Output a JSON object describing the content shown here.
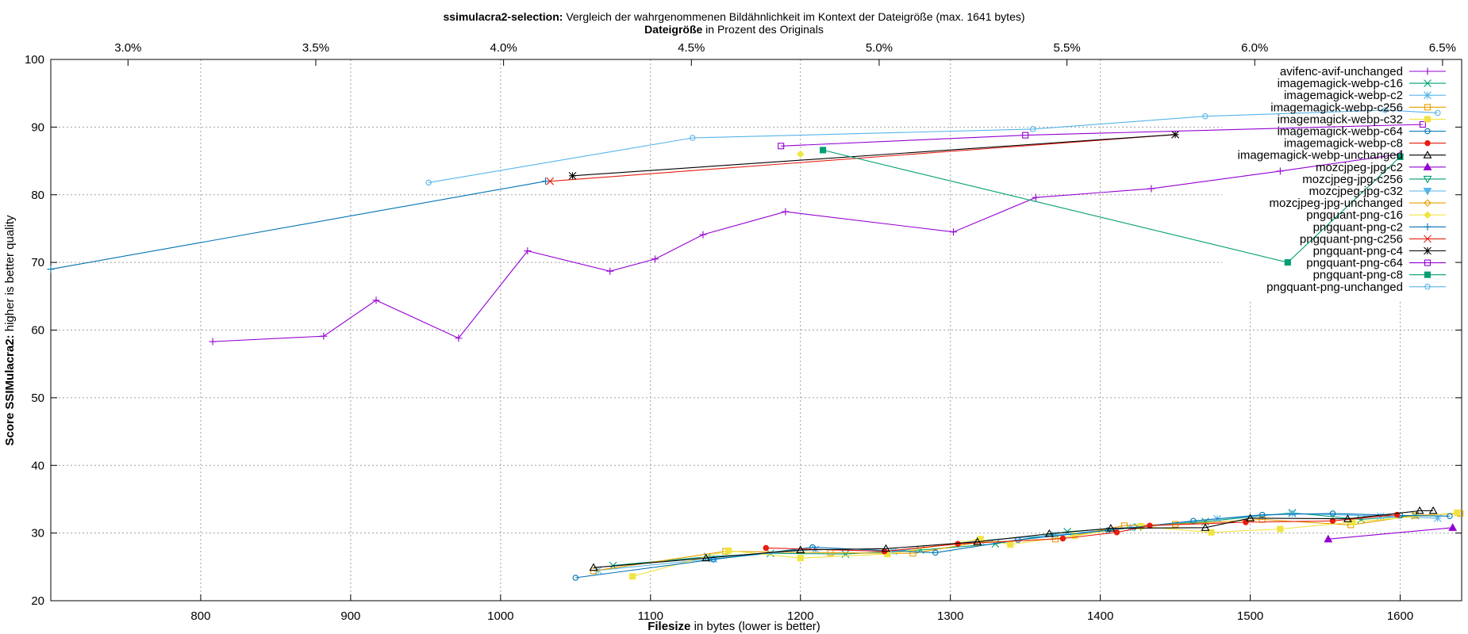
{
  "chart_data": {
    "type": "line",
    "title_bold": "ssimulacra2-selection:",
    "title_rest": " Vergleich der wahrgenommenen Bildähnlichkeit im Kontext der Dateigröße (max. 1641 bytes)",
    "x2label_bold": "Dateigröße",
    "x2label_rest": " in Prozent des Originals",
    "xlabel_bold": "Filesize",
    "xlabel_rest": " in bytes (lower is better)",
    "ylabel_bold": "Score SSIMulacra2:",
    "ylabel_rest": " higher is better quality",
    "xlim": [
      700,
      1641
    ],
    "ylim": [
      20,
      100
    ],
    "x_ticks": [
      800,
      900,
      1000,
      1100,
      1200,
      1300,
      1400,
      1500,
      1600
    ],
    "y_ticks": [
      20,
      30,
      40,
      50,
      60,
      70,
      80,
      90,
      100
    ],
    "x2_ticks": [
      "3.0%",
      "3.5%",
      "4.0%",
      "4.5%",
      "5.0%",
      "5.5%",
      "6.0%",
      "6.5%"
    ],
    "x2_tick_values": [
      3.0,
      3.5,
      4.0,
      4.5,
      5.0,
      5.5,
      6.0,
      6.5
    ],
    "x2_bytes_per_percent": 250.5,
    "grid": true,
    "legend_position": "top-right",
    "series": [
      {
        "name": "avifenc-avif-unchanged",
        "color": "#9400d3",
        "marker": "plus",
        "points": [
          [
            808,
            58.3
          ],
          [
            882,
            59.1
          ],
          [
            917,
            64.4
          ],
          [
            972,
            58.8
          ],
          [
            1018,
            71.7
          ],
          [
            1073,
            68.7
          ],
          [
            1103,
            70.5
          ],
          [
            1135,
            74.1
          ],
          [
            1190,
            77.5
          ],
          [
            1302,
            74.5
          ],
          [
            1357,
            79.6
          ],
          [
            1434,
            80.9
          ],
          [
            1520,
            83.5
          ],
          [
            1600,
            86.0
          ]
        ]
      },
      {
        "name": "imagemagick-webp-c16",
        "color": "#009e73",
        "marker": "x",
        "points": [
          [
            1075,
            25.2
          ],
          [
            1138,
            26.5
          ],
          [
            1180,
            27.0
          ],
          [
            1230,
            26.9
          ],
          [
            1280,
            27.5
          ],
          [
            1330,
            28.4
          ],
          [
            1378,
            30.2
          ],
          [
            1425,
            30.9
          ],
          [
            1470,
            31.7
          ],
          [
            1528,
            33.0
          ],
          [
            1574,
            32.0
          ],
          [
            1610,
            32.6
          ]
        ]
      },
      {
        "name": "imagemagick-webp-c2",
        "color": "#56b4e9",
        "marker": "asterisk",
        "points": [
          [
            1065,
            24.5
          ],
          [
            1142,
            26.2
          ],
          [
            1210,
            27.6
          ],
          [
            1262,
            27.3
          ],
          [
            1320,
            28.9
          ],
          [
            1370,
            29.7
          ],
          [
            1420,
            30.8
          ],
          [
            1478,
            32.1
          ],
          [
            1528,
            32.9
          ],
          [
            1587,
            32.5
          ],
          [
            1625,
            32.2
          ]
        ]
      },
      {
        "name": "imagemagick-webp-c256",
        "color": "#e69f00",
        "marker": "square",
        "points": [
          [
            1062,
            24.4
          ],
          [
            1150,
            27.3
          ],
          [
            1220,
            27.1
          ],
          [
            1275,
            27.0
          ],
          [
            1318,
            28.6
          ],
          [
            1370,
            29.1
          ],
          [
            1416,
            31.1
          ],
          [
            1450,
            31.3
          ],
          [
            1508,
            32.0
          ],
          [
            1567,
            31.2
          ],
          [
            1610,
            32.6
          ],
          [
            1640,
            32.9
          ]
        ]
      },
      {
        "name": "imagemagick-webp-c32",
        "color": "#f0e442",
        "marker": "filled-square",
        "points": [
          [
            1088,
            23.6
          ],
          [
            1152,
            27.4
          ],
          [
            1200,
            26.3
          ],
          [
            1258,
            26.9
          ],
          [
            1320,
            29.1
          ],
          [
            1340,
            28.3
          ],
          [
            1383,
            29.6
          ],
          [
            1427,
            31.0
          ],
          [
            1474,
            30.1
          ],
          [
            1520,
            30.6
          ],
          [
            1568,
            31.6
          ],
          [
            1638,
            33.0
          ]
        ]
      },
      {
        "name": "imagemagick-webp-c64",
        "color": "#0072b2",
        "marker": "circle",
        "points": [
          [
            1050,
            23.4
          ],
          [
            1142,
            26.1
          ],
          [
            1208,
            27.9
          ],
          [
            1290,
            27.1
          ],
          [
            1345,
            29.0
          ],
          [
            1405,
            30.4
          ],
          [
            1462,
            31.8
          ],
          [
            1508,
            32.7
          ],
          [
            1555,
            32.9
          ],
          [
            1600,
            32.6
          ],
          [
            1633,
            32.5
          ]
        ]
      },
      {
        "name": "imagemagick-webp-c8",
        "color": "#e51e10",
        "marker": "filled-circle",
        "points": [
          [
            1177,
            27.8
          ],
          [
            1256,
            27.3
          ],
          [
            1305,
            28.4
          ],
          [
            1375,
            29.2
          ],
          [
            1411,
            30.1
          ],
          [
            1433,
            31.1
          ],
          [
            1497,
            31.6
          ],
          [
            1555,
            31.8
          ],
          [
            1598,
            32.7
          ]
        ]
      },
      {
        "name": "imagemagick-webp-unchanged",
        "color": "#000000",
        "marker": "triangle",
        "points": [
          [
            1062,
            24.9
          ],
          [
            1137,
            26.3
          ],
          [
            1200,
            27.5
          ],
          [
            1257,
            27.7
          ],
          [
            1318,
            28.7
          ],
          [
            1366,
            29.9
          ],
          [
            1407,
            30.7
          ],
          [
            1470,
            30.8
          ],
          [
            1500,
            32.2
          ],
          [
            1565,
            32.1
          ],
          [
            1613,
            33.3
          ],
          [
            1622,
            33.3
          ]
        ]
      },
      {
        "name": "mozcjpeg-jpg-c2",
        "color": "#9400d3",
        "marker": "filled-triangle",
        "points": [
          [
            1552,
            29.1
          ],
          [
            1635,
            30.8
          ]
        ]
      },
      {
        "name": "mozcjpeg-jpg-c256",
        "color": "#009e73",
        "marker": "triangle-down",
        "points": []
      },
      {
        "name": "mozcjpeg-jpg-c32",
        "color": "#56b4e9",
        "marker": "filled-triangle-down",
        "points": []
      },
      {
        "name": "mozcjpeg-jpg-unchanged",
        "color": "#e69f00",
        "marker": "diamond",
        "points": []
      },
      {
        "name": "pngquant-png-c16",
        "color": "#f0e442",
        "marker": "filled-diamond",
        "points": [
          [
            1200,
            86.0
          ]
        ]
      },
      {
        "name": "pngquant-png-c2",
        "color": "#0072b2",
        "marker": "plus",
        "points": [
          [
            700,
            69.0
          ],
          [
            1030,
            82.0
          ]
        ]
      },
      {
        "name": "pngquant-png-c256",
        "color": "#e51e10",
        "marker": "x",
        "points": [
          [
            1033,
            82.0
          ],
          [
            1450,
            88.9
          ]
        ]
      },
      {
        "name": "pngquant-png-c4",
        "color": "#000000",
        "marker": "asterisk",
        "points": [
          [
            1048,
            82.8
          ],
          [
            1450,
            88.9
          ]
        ]
      },
      {
        "name": "pngquant-png-c64",
        "color": "#9400d3",
        "marker": "square",
        "points": [
          [
            1187,
            87.2
          ],
          [
            1350,
            88.8
          ],
          [
            1615,
            90.4
          ]
        ]
      },
      {
        "name": "pngquant-png-c8",
        "color": "#009e73",
        "marker": "filled-square",
        "points": [
          [
            1215,
            86.6
          ],
          [
            1525,
            70.0
          ],
          [
            1600,
            85.6
          ]
        ]
      },
      {
        "name": "pngquant-png-unchanged",
        "color": "#56b4e9",
        "marker": "circle",
        "points": [
          [
            952,
            81.8
          ],
          [
            1128,
            88.4
          ],
          [
            1355,
            89.7
          ],
          [
            1470,
            91.6
          ],
          [
            1590,
            92.5
          ],
          [
            1625,
            92.1
          ]
        ]
      }
    ]
  }
}
